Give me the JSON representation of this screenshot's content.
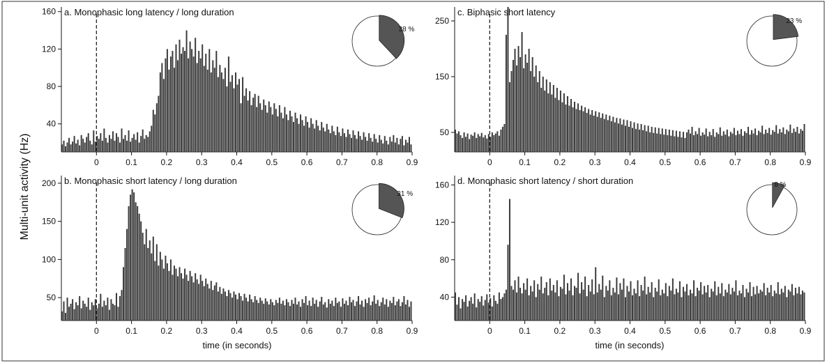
{
  "figure": {
    "ylabel": "Multi-unit activity (Hz)",
    "colors": {
      "bar": "#3c3c3c",
      "bar_edge": "#111111",
      "pie_fill": "#555555",
      "pie_rest": "#ffffff"
    }
  },
  "chart_data": [
    {
      "id": "a",
      "type": "bar",
      "title": "a. Monophasic long latency / long duration",
      "xlabel": "",
      "ylabel": "",
      "xlim": [
        -0.1,
        0.9
      ],
      "ylim": [
        10,
        165
      ],
      "x_ticks": [
        0,
        0.1,
        0.2,
        0.3,
        0.4,
        0.5,
        0.6,
        0.7,
        0.8,
        0.9
      ],
      "x_tick_labels": [
        "0",
        "0.1",
        "0.2",
        "0.3",
        "0.4",
        "0.5",
        "0.6",
        "0.7",
        "0.8",
        "0.9"
      ],
      "y_ticks": [
        40,
        80,
        120,
        160
      ],
      "y_tick_labels": [
        "40",
        "80",
        "120",
        "160"
      ],
      "stimulus_line_x": 0,
      "bin_width": 0.005,
      "bins_x_start": -0.1,
      "values": [
        18,
        22,
        16,
        20,
        25,
        18,
        21,
        27,
        19,
        23,
        17,
        28,
        24,
        20,
        26,
        30,
        22,
        18,
        33,
        21,
        27,
        24,
        30,
        22,
        35,
        25,
        20,
        28,
        24,
        32,
        22,
        30,
        26,
        20,
        35,
        24,
        28,
        22,
        33,
        21,
        25,
        29,
        23,
        31,
        20,
        27,
        34,
        24,
        28,
        26,
        32,
        38,
        55,
        50,
        62,
        70,
        95,
        105,
        88,
        110,
        120,
        98,
        112,
        118,
        100,
        125,
        108,
        130,
        115,
        122,
        118,
        140,
        110,
        128,
        120,
        112,
        132,
        105,
        118,
        110,
        125,
        102,
        115,
        98,
        120,
        95,
        108,
        100,
        118,
        90,
        103,
        95,
        88,
        100,
        80,
        112,
        85,
        92,
        78,
        95,
        82,
        88,
        62,
        90,
        70,
        78,
        65,
        75,
        60,
        68,
        72,
        58,
        70,
        62,
        55,
        66,
        60,
        52,
        64,
        58,
        50,
        62,
        56,
        48,
        60,
        52,
        46,
        58,
        50,
        44,
        54,
        48,
        42,
        52,
        46,
        40,
        50,
        44,
        38,
        48,
        42,
        36,
        46,
        40,
        35,
        44,
        38,
        33,
        42,
        36,
        32,
        40,
        34,
        30,
        38,
        32,
        28,
        37,
        31,
        27,
        35,
        30,
        26,
        34,
        29,
        25,
        33,
        28,
        24,
        32,
        27,
        23,
        31,
        26,
        22,
        30,
        25,
        21,
        29,
        24,
        20,
        28,
        23,
        19,
        27,
        22,
        18,
        26,
        21,
        28,
        20,
        25,
        18,
        24,
        27,
        17,
        23,
        20,
        26,
        18
      ],
      "pie": {
        "percent": 38,
        "label": "38 %"
      }
    },
    {
      "id": "b",
      "type": "bar",
      "title": "b. Monophasic short latency / long duration",
      "xlabel": "time (in seconds)",
      "ylabel": "",
      "xlim": [
        -0.1,
        0.9
      ],
      "ylim": [
        20,
        210
      ],
      "x_ticks": [
        0,
        0.1,
        0.2,
        0.3,
        0.4,
        0.5,
        0.6,
        0.7,
        0.8,
        0.9
      ],
      "x_tick_labels": [
        "0",
        "0.1",
        "0.2",
        "0.3",
        "0.4",
        "0.5",
        "0.6",
        "0.7",
        "0.8",
        "0.9"
      ],
      "y_ticks": [
        50,
        100,
        150,
        200
      ],
      "y_tick_labels": [
        "50",
        "100",
        "150",
        "200"
      ],
      "stimulus_line_x": 0,
      "bin_width": 0.005,
      "bins_x_start": -0.1,
      "values": [
        32,
        45,
        30,
        50,
        38,
        42,
        48,
        35,
        44,
        40,
        52,
        36,
        46,
        42,
        38,
        50,
        34,
        44,
        40,
        48,
        36,
        42,
        55,
        38,
        46,
        40,
        50,
        34,
        48,
        42,
        40,
        56,
        38,
        52,
        60,
        90,
        115,
        140,
        170,
        185,
        192,
        188,
        175,
        170,
        160,
        150,
        135,
        120,
        140,
        115,
        125,
        108,
        130,
        98,
        120,
        92,
        110,
        100,
        88,
        105,
        95,
        85,
        100,
        80,
        92,
        88,
        78,
        90,
        82,
        75,
        88,
        80,
        72,
        85,
        78,
        70,
        82,
        74,
        68,
        80,
        72,
        65,
        75,
        68,
        62,
        72,
        60,
        66,
        70,
        58,
        64,
        55,
        62,
        58,
        52,
        60,
        56,
        50,
        58,
        54,
        48,
        56,
        52,
        46,
        55,
        50,
        45,
        54,
        48,
        44,
        52,
        47,
        43,
        50,
        46,
        42,
        49,
        45,
        41,
        48,
        44,
        40,
        47,
        43,
        50,
        42,
        46,
        40,
        48,
        44,
        39,
        47,
        42,
        50,
        41,
        45,
        38,
        48,
        43,
        52,
        40,
        46,
        39,
        50,
        42,
        47,
        38,
        45,
        51,
        41,
        44,
        37,
        48,
        42,
        46,
        39,
        50,
        43,
        45,
        38,
        49,
        42,
        46,
        40,
        51,
        44,
        47,
        39,
        45,
        52,
        41,
        46,
        38,
        48,
        43,
        50,
        40,
        45,
        53,
        42,
        47,
        39,
        44,
        50,
        41,
        48,
        38,
        46,
        43,
        51,
        40,
        45,
        48,
        39,
        44,
        52,
        41,
        47,
        38,
        45
      ],
      "pie": {
        "percent": 31,
        "label": "31 %"
      }
    },
    {
      "id": "c",
      "type": "bar",
      "title": "c. Biphasic short latency",
      "xlabel": "",
      "ylabel": "",
      "xlim": [
        -0.1,
        0.9
      ],
      "ylim": [
        15,
        275
      ],
      "x_ticks": [
        0,
        0.1,
        0.2,
        0.3,
        0.4,
        0.5,
        0.6,
        0.7,
        0.8,
        0.9
      ],
      "x_tick_labels": [
        "0",
        "0.1",
        "0.2",
        "0.3",
        "0.4",
        "0.5",
        "0.6",
        "0.7",
        "0.8",
        "0.9"
      ],
      "y_ticks": [
        50,
        150,
        250
      ],
      "y_tick_labels": [
        "50",
        "150",
        "250"
      ],
      "stimulus_line_x": 0,
      "bin_width": 0.005,
      "bins_x_start": -0.1,
      "values": [
        55,
        48,
        52,
        45,
        40,
        50,
        42,
        48,
        38,
        46,
        44,
        50,
        40,
        47,
        43,
        49,
        41,
        45,
        39,
        47,
        42,
        50,
        45,
        48,
        52,
        44,
        55,
        60,
        65,
        225,
        275,
        140,
        160,
        180,
        200,
        170,
        205,
        185,
        230,
        165,
        190,
        175,
        200,
        160,
        185,
        150,
        170,
        140,
        160,
        130,
        150,
        125,
        145,
        120,
        140,
        118,
        135,
        112,
        130,
        108,
        125,
        104,
        120,
        100,
        115,
        98,
        110,
        95,
        105,
        92,
        102,
        90,
        98,
        88,
        95,
        85,
        92,
        82,
        90,
        80,
        88,
        78,
        86,
        76,
        84,
        74,
        82,
        72,
        80,
        70,
        78,
        68,
        76,
        66,
        75,
        64,
        73,
        62,
        72,
        60,
        70,
        58,
        68,
        56,
        66,
        55,
        65,
        54,
        63,
        52,
        62,
        50,
        60,
        49,
        59,
        48,
        58,
        47,
        57,
        46,
        56,
        45,
        55,
        44,
        54,
        43,
        53,
        42,
        52,
        41,
        51,
        40,
        50,
        55,
        48,
        60,
        45,
        52,
        47,
        58,
        44,
        50,
        46,
        57,
        43,
        51,
        45,
        56,
        42,
        50,
        47,
        59,
        44,
        52,
        46,
        55,
        43,
        51,
        48,
        58,
        45,
        53,
        47,
        56,
        44,
        52,
        49,
        60,
        46,
        54,
        48,
        57,
        45,
        53,
        50,
        62,
        47,
        55,
        49,
        58,
        46,
        54,
        51,
        63,
        48,
        56,
        50,
        59,
        47,
        55,
        52,
        64,
        49,
        57,
        51,
        60,
        48,
        56,
        53,
        65
      ],
      "pie": {
        "percent": 23,
        "label": "23 %"
      }
    },
    {
      "id": "d",
      "type": "bar",
      "title": "d. Monophasic short latency / short duration",
      "xlabel": "time (in seconds)",
      "ylabel": "",
      "xlim": [
        -0.1,
        0.9
      ],
      "ylim": [
        15,
        170
      ],
      "x_ticks": [
        0,
        0.1,
        0.2,
        0.3,
        0.4,
        0.5,
        0.6,
        0.7,
        0.8,
        0.9
      ],
      "x_tick_labels": [
        "0",
        "0.1",
        "0.2",
        "0.3",
        "0.4",
        "0.5",
        "0.6",
        "0.7",
        "0.8",
        "0.9"
      ],
      "y_ticks": [
        40,
        80,
        120,
        160
      ],
      "y_tick_labels": [
        "40",
        "80",
        "120",
        "160"
      ],
      "stimulus_line_x": 0,
      "bin_width": 0.005,
      "bins_x_start": -0.1,
      "values": [
        45,
        32,
        40,
        28,
        38,
        35,
        42,
        30,
        36,
        40,
        33,
        44,
        29,
        38,
        35,
        41,
        31,
        37,
        43,
        34,
        39,
        30,
        42,
        36,
        33,
        45,
        38,
        40,
        44,
        48,
        96,
        145,
        52,
        48,
        58,
        45,
        62,
        50,
        44,
        55,
        48,
        60,
        42,
        52,
        46,
        58,
        40,
        54,
        48,
        62,
        44,
        50,
        56,
        42,
        60,
        47,
        53,
        45,
        58,
        41,
        51,
        49,
        64,
        43,
        55,
        47,
        60,
        42,
        52,
        50,
        66,
        44,
        56,
        48,
        62,
        41,
        53,
        46,
        59,
        43,
        72,
        45,
        54,
        48,
        63,
        40,
        52,
        47,
        58,
        42,
        50,
        45,
        61,
        43,
        55,
        48,
        60,
        40,
        52,
        46,
        57,
        42,
        49,
        44,
        58,
        41,
        53,
        47,
        62,
        43,
        51,
        45,
        56,
        40,
        50,
        46,
        59,
        42,
        48,
        44,
        55,
        41,
        52,
        47,
        60,
        43,
        49,
        45,
        57,
        40,
        51,
        46,
        54,
        42,
        48,
        44,
        58,
        41,
        50,
        47,
        56,
        43,
        52,
        45,
        53,
        40,
        49,
        46,
        57,
        42,
        51,
        44,
        55,
        41,
        48,
        45,
        54,
        43,
        50,
        46,
        58,
        42,
        47,
        44,
        53,
        40,
        49,
        45,
        56,
        41,
        51,
        43,
        52,
        44,
        48,
        46,
        55,
        42,
        50,
        45,
        53,
        41,
        47,
        44,
        56,
        43,
        49,
        45,
        52,
        40,
        48,
        46,
        54,
        42,
        50,
        44,
        51,
        43,
        47,
        45
      ],
      "pie": {
        "percent": 8,
        "label": "8 %"
      }
    }
  ]
}
